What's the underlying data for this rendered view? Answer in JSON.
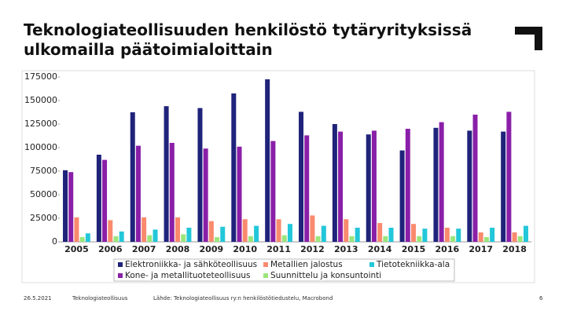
{
  "chart_data": {
    "type": "bar",
    "title": "Teknologiateollisuuden henkilöstö tytäryrityksissä ulkomailla päätoimialoittain",
    "categories": [
      "2005",
      "2006",
      "2007",
      "2008",
      "2009",
      "2010",
      "2011",
      "2012",
      "2013",
      "2014",
      "2015",
      "2016",
      "2017",
      "2018"
    ],
    "series": [
      {
        "name": "Elektroniikka- ja sähköteollisuus",
        "color": "#1f237a",
        "values": [
          76000,
          92500,
          137500,
          144000,
          142000,
          157500,
          172500,
          138000,
          125000,
          114000,
          97000,
          121000,
          118000,
          117000
        ]
      },
      {
        "name": "Kone- ja metallituoteteollisuus",
        "color": "#8a1fa8",
        "values": [
          74000,
          87000,
          102000,
          105000,
          99000,
          101000,
          107000,
          113000,
          117000,
          118000,
          120000,
          127000,
          135000,
          138000
        ]
      },
      {
        "name": "Metallien jalostus",
        "color": "#f98a6e",
        "values": [
          26000,
          23000,
          26000,
          26000,
          22000,
          24000,
          24000,
          28000,
          24000,
          20000,
          19000,
          15000,
          10000,
          10000
        ]
      },
      {
        "name": "Suunnittelu ja konsuntointi",
        "color": "#9ae67c",
        "values": [
          5000,
          6000,
          7000,
          8000,
          5000,
          6000,
          7000,
          6000,
          6000,
          6000,
          6000,
          6000,
          5000,
          6000
        ]
      },
      {
        "name": "Tietotekniikka-ala",
        "color": "#22c7d9",
        "values": [
          9000,
          11000,
          13000,
          15000,
          16000,
          17000,
          19000,
          17000,
          15000,
          15000,
          14000,
          14000,
          15000,
          17000
        ]
      }
    ],
    "ylim": [
      0,
      175000
    ],
    "yticks": [
      0,
      25000,
      50000,
      75000,
      100000,
      125000,
      150000,
      175000
    ]
  },
  "footer": {
    "date": "26.5.2021",
    "org": "Teknologiateollisuus",
    "source": "Lähde: Teknologiateollisuus ry:n henkilöstötiedustelu, Macrobond",
    "page": "6"
  }
}
